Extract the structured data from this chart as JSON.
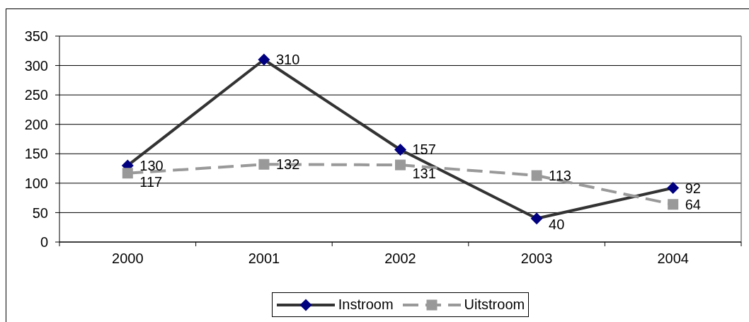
{
  "chart_data": {
    "type": "line",
    "categories": [
      "2000",
      "2001",
      "2002",
      "2003",
      "2004"
    ],
    "series": [
      {
        "name": "Instroom",
        "color": "#333333",
        "colors": [
          "#000080",
          "#000080",
          "#000080",
          "#000080",
          "#000080"
        ],
        "marker": "diamond",
        "line_style": "solid",
        "values": [
          130,
          310,
          157,
          40,
          92
        ]
      },
      {
        "name": "Uitstroom",
        "color": "#999999",
        "marker": "square",
        "line_style": "dashed",
        "values": [
          117,
          132,
          131,
          113,
          64
        ]
      }
    ],
    "ylim": [
      0,
      350
    ],
    "yticks": [
      0,
      50,
      100,
      150,
      200,
      250,
      300,
      350
    ],
    "grid": "y",
    "legend": "bottom",
    "data_labels": true
  }
}
